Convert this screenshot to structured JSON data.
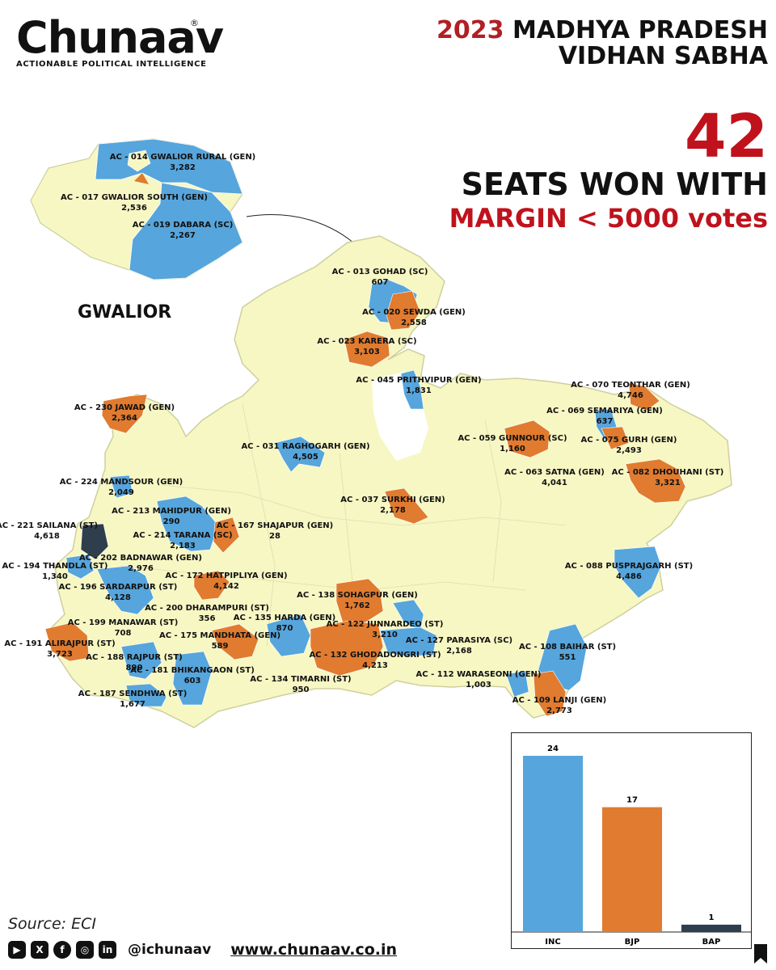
{
  "brand": {
    "name": "Chunaav",
    "reg": "®",
    "tagline": "ACTIONABLE POLITICAL INTELLIGENCE"
  },
  "headline": {
    "year": "2023",
    "line1": "MADHYA PRADESH",
    "line2": "VIDHAN SABHA"
  },
  "stat": {
    "number": "42",
    "line1": "SEATS WON WITH",
    "line2": "MARGIN < 5000 votes"
  },
  "inset": {
    "title": "GWALIOR"
  },
  "colors": {
    "INC": "#56a5dc",
    "BJP": "#e07b30",
    "BAP": "#2f3e4d",
    "land": "#f7f7c4",
    "border": "#cfcf9e",
    "accent": "#c0121c"
  },
  "constituencies": [
    {
      "name": "AC - 014 GWALIOR RURAL (GEN)",
      "margin": "3,282"
    },
    {
      "name": "AC - 017 GWALIOR SOUTH (GEN)",
      "margin": "2,536"
    },
    {
      "name": "AC - 019 DABARA (SC)",
      "margin": "2,267"
    },
    {
      "name": "AC - 013 GOHAD (SC)",
      "margin": "607"
    },
    {
      "name": "AC - 020 SEWDA (GEN)",
      "margin": "2,558"
    },
    {
      "name": "AC - 023 KARERA (SC)",
      "margin": "3,103"
    },
    {
      "name": "AC - 045 PRITHVIPUR (GEN)",
      "margin": "1,831"
    },
    {
      "name": "AC - 070 TEONTHAR (GEN)",
      "margin": "4,746"
    },
    {
      "name": "AC - 069 SEMARIYA (GEN)",
      "margin": "637"
    },
    {
      "name": "AC - 059 GUNNOUR (SC)",
      "margin": "1,160"
    },
    {
      "name": "AC - 075 GURH (GEN)",
      "margin": "2,493"
    },
    {
      "name": "AC - 063 SATNA (GEN)",
      "margin": "4,041"
    },
    {
      "name": "AC - 082 DHOUHANI (ST)",
      "margin": "3,321"
    },
    {
      "name": "AC - 230 JAWAD (GEN)",
      "margin": "2,364"
    },
    {
      "name": "AC - 031 RAGHOGARH (GEN)",
      "margin": "4,505"
    },
    {
      "name": "AC - 224 MANDSOUR (GEN)",
      "margin": "2,049"
    },
    {
      "name": "AC - 037 SURKHI (GEN)",
      "margin": "2,178"
    },
    {
      "name": "AC - 213 MAHIDPUR (GEN)",
      "margin": "290"
    },
    {
      "name": "AC - 221 SAILANA (ST)",
      "margin": "4,618"
    },
    {
      "name": "AC - 214 TARANA (SC)",
      "margin": "2,183"
    },
    {
      "name": "AC - 167 SHAJAPUR (GEN)",
      "margin": "28"
    },
    {
      "name": "AC - 202 BADNAWAR (GEN)",
      "margin": "2,976"
    },
    {
      "name": "AC - 194 THANDLA (ST)",
      "margin": "1,340"
    },
    {
      "name": "AC - 172 HATPIPLIYA (GEN)",
      "margin": "4,142"
    },
    {
      "name": "AC - 088 PUSPRAJGARH (ST)",
      "margin": "4,486"
    },
    {
      "name": "AC - 196 SARDARPUR (ST)",
      "margin": "4,128"
    },
    {
      "name": "AC - 138 SOHAGPUR (GEN)",
      "margin": "1,762"
    },
    {
      "name": "AC - 200 DHARAMPURI (ST)",
      "margin": "356"
    },
    {
      "name": "AC - 135 HARDA (GEN)",
      "margin": "870"
    },
    {
      "name": "AC - 122 JUNNARDEO (ST)",
      "margin": "3,210"
    },
    {
      "name": "AC - 199 MANAWAR (ST)",
      "margin": "708"
    },
    {
      "name": "AC - 175 MANDHATA (GEN)",
      "margin": "589"
    },
    {
      "name": "AC - 127 PARASIYA (SC)",
      "margin": "2,168"
    },
    {
      "name": "AC - 191 ALIRAJPUR (ST)",
      "margin": "3,723"
    },
    {
      "name": "AC - 132 GHODADONGRI (ST)",
      "margin": "4,213"
    },
    {
      "name": "AC - 108 BAIHAR (ST)",
      "margin": "551"
    },
    {
      "name": "AC - 188 RAJPUR (ST)",
      "margin": "890"
    },
    {
      "name": "AC - 181 BHIKANGAON (ST)",
      "margin": "603"
    },
    {
      "name": "AC - 134 TIMARNI (ST)",
      "margin": "950"
    },
    {
      "name": "AC - 112 WARASEONI (GEN)",
      "margin": "1,003"
    },
    {
      "name": "AC - 187 SENDHWA (ST)",
      "margin": "1,677"
    },
    {
      "name": "AC - 109 LANJI (GEN)",
      "margin": "2,773"
    }
  ],
  "chart_data": {
    "type": "bar",
    "categories": [
      "INC",
      "BJP",
      "BAP"
    ],
    "values": [
      24,
      17,
      1
    ],
    "colors": [
      "#56a5dc",
      "#e07b30",
      "#2f3e4d"
    ],
    "ylim": [
      0,
      24
    ]
  },
  "footer": {
    "source": "Source: ECI",
    "icons": [
      "youtube-icon",
      "x-icon",
      "facebook-icon",
      "instagram-icon",
      "linkedin-icon"
    ],
    "handle": "@ichunaav",
    "website": "www.chunaav.co.in"
  }
}
